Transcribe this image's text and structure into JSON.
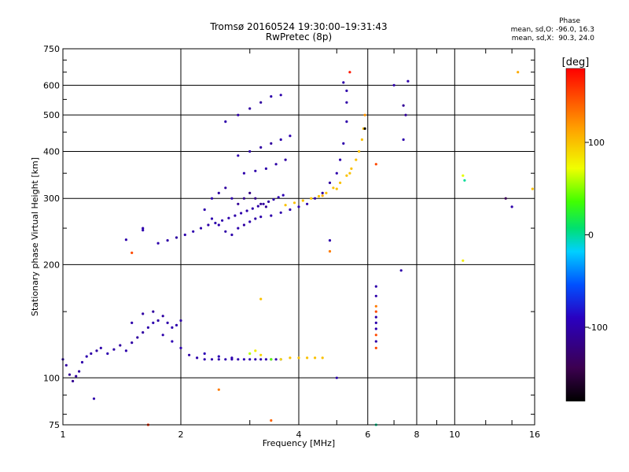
{
  "chart_data": {
    "type": "scatter",
    "title": "Tromsø 20160524 19:30:00–19:31:43",
    "subtitle": "RwPretec (8p)",
    "xlabel": "Frequency [MHz]",
    "ylabel": "Stationary phase Virtual Height [km]",
    "x_scale": "log",
    "y_scale": "log",
    "xlim": [
      1,
      16
    ],
    "ylim": [
      75,
      750
    ],
    "x_ticks": [
      "1",
      "2",
      "4",
      "6",
      "8",
      "10",
      "16"
    ],
    "x_tick_values": [
      1,
      2,
      4,
      6,
      8,
      10,
      16
    ],
    "y_ticks": [
      "75",
      "100",
      "200",
      "300",
      "400",
      "500",
      "600",
      "750"
    ],
    "y_tick_values": [
      75,
      100,
      200,
      300,
      400,
      500,
      600,
      750
    ],
    "grid": true,
    "colorbar": {
      "label": "[deg]",
      "range": [
        -180,
        180
      ],
      "ticks": [
        "100",
        "0",
        "-100"
      ],
      "tick_values": [
        100,
        0,
        -100
      ]
    },
    "stats": {
      "header": "Phase",
      "o_mode": "mean, sd,O: -96.0, 16.3",
      "x_mode": "mean, sd,X:  90.3, 24.0"
    },
    "series": [
      {
        "points": [
          [
            1.0,
            112,
            -100
          ],
          [
            1.02,
            108,
            -105
          ],
          [
            1.04,
            102,
            -110
          ],
          [
            1.06,
            98,
            -112
          ],
          [
            1.08,
            101,
            -108
          ],
          [
            1.1,
            104,
            -106
          ],
          [
            1.12,
            110,
            -100
          ],
          [
            1.15,
            114,
            -98
          ],
          [
            1.18,
            116,
            -102
          ],
          [
            1.22,
            118,
            -104
          ],
          [
            1.25,
            120,
            -100
          ],
          [
            1.3,
            116,
            -98
          ],
          [
            1.35,
            119,
            -102
          ],
          [
            1.4,
            122,
            -105
          ],
          [
            1.45,
            118,
            -100
          ],
          [
            1.5,
            124,
            -103
          ],
          [
            1.55,
            128,
            -106
          ],
          [
            1.6,
            132,
            -104
          ],
          [
            1.65,
            136,
            -100
          ],
          [
            1.7,
            140,
            -98
          ],
          [
            1.75,
            142,
            -102
          ],
          [
            1.8,
            146,
            -104
          ],
          [
            1.85,
            140,
            -100
          ],
          [
            1.9,
            136,
            -97
          ],
          [
            1.95,
            138,
            -99
          ],
          [
            2.0,
            142,
            -102
          ],
          [
            1.5,
            140,
            -100
          ],
          [
            1.6,
            148,
            -104
          ],
          [
            1.7,
            150,
            -106
          ],
          [
            1.8,
            130,
            -100
          ],
          [
            1.9,
            125,
            -96
          ],
          [
            2.0,
            120,
            -98
          ],
          [
            2.1,
            115,
            -102
          ],
          [
            2.2,
            113,
            -100
          ],
          [
            2.3,
            112,
            -100
          ],
          [
            2.4,
            112,
            -100
          ],
          [
            2.5,
            112,
            -100
          ],
          [
            2.6,
            112,
            -98
          ],
          [
            2.7,
            112,
            -100
          ],
          [
            2.8,
            112,
            -100
          ],
          [
            2.9,
            112,
            -96
          ],
          [
            3.0,
            112,
            -100
          ],
          [
            3.1,
            112,
            -100
          ],
          [
            3.2,
            112,
            -100
          ],
          [
            3.3,
            112,
            -100
          ],
          [
            3.4,
            112,
            -100
          ],
          [
            3.5,
            112,
            -98
          ],
          [
            3.6,
            112,
            -100
          ],
          [
            2.3,
            116,
            -95
          ],
          [
            2.5,
            114,
            -96
          ],
          [
            2.7,
            113,
            -98
          ],
          [
            3.0,
            116,
            60
          ],
          [
            3.1,
            118,
            80
          ],
          [
            3.2,
            115,
            90
          ],
          [
            3.4,
            112,
            40
          ],
          [
            3.6,
            112,
            90
          ],
          [
            3.8,
            113,
            100
          ],
          [
            4.0,
            113,
            100
          ],
          [
            4.2,
            113,
            100
          ],
          [
            4.4,
            113,
            100
          ],
          [
            4.6,
            113,
            100
          ]
        ]
      },
      {
        "points": [
          [
            1.75,
            228,
            -100
          ],
          [
            1.85,
            232,
            -102
          ],
          [
            1.95,
            236,
            -104
          ],
          [
            2.05,
            240,
            -100
          ],
          [
            2.15,
            245,
            -98
          ],
          [
            2.25,
            250,
            -100
          ],
          [
            2.35,
            255,
            -102
          ],
          [
            2.45,
            258,
            -100
          ],
          [
            2.55,
            262,
            -99
          ],
          [
            2.65,
            266,
            -100
          ],
          [
            2.75,
            270,
            -101
          ],
          [
            2.85,
            274,
            -100
          ],
          [
            2.95,
            278,
            -100
          ],
          [
            3.05,
            282,
            -100
          ],
          [
            3.15,
            286,
            -102
          ],
          [
            3.25,
            290,
            -104
          ],
          [
            3.35,
            294,
            -106
          ],
          [
            3.45,
            298,
            -100
          ],
          [
            3.55,
            302,
            -98
          ],
          [
            3.65,
            306,
            -96
          ],
          [
            2.4,
            300,
            -100
          ],
          [
            2.5,
            310,
            -104
          ],
          [
            2.6,
            320,
            -106
          ],
          [
            2.7,
            300,
            -100
          ],
          [
            2.8,
            290,
            -110
          ],
          [
            2.9,
            300,
            -115
          ],
          [
            3.0,
            310,
            -120
          ],
          [
            3.1,
            300,
            -118
          ],
          [
            3.2,
            290,
            -112
          ],
          [
            3.3,
            285,
            -110
          ],
          [
            2.3,
            280,
            -100
          ],
          [
            2.4,
            265,
            -98
          ],
          [
            2.5,
            255,
            -100
          ],
          [
            2.6,
            245,
            -102
          ],
          [
            2.7,
            240,
            -100
          ],
          [
            2.8,
            250,
            -100
          ],
          [
            2.9,
            255,
            -104
          ],
          [
            3.0,
            260,
            -100
          ],
          [
            3.1,
            265,
            -102
          ],
          [
            3.2,
            268,
            -100
          ],
          [
            3.4,
            270,
            -100
          ],
          [
            3.6,
            275,
            -100
          ],
          [
            3.8,
            280,
            -98
          ],
          [
            4.0,
            285,
            -96
          ],
          [
            4.2,
            290,
            -100
          ],
          [
            4.4,
            300,
            -100
          ],
          [
            4.6,
            310,
            -104
          ],
          [
            4.8,
            330,
            -106
          ],
          [
            5.0,
            350,
            -100
          ],
          [
            5.1,
            380,
            -100
          ],
          [
            5.2,
            420,
            -100
          ],
          [
            5.3,
            480,
            -100
          ],
          [
            5.3,
            540,
            -102
          ],
          [
            5.3,
            580,
            -100
          ],
          [
            5.2,
            610,
            -100
          ],
          [
            2.6,
            480,
            -100
          ],
          [
            2.8,
            500,
            -102
          ],
          [
            3.0,
            520,
            -104
          ],
          [
            3.2,
            540,
            -106
          ],
          [
            3.4,
            560,
            -100
          ],
          [
            3.6,
            565,
            -100
          ],
          [
            2.8,
            390,
            -100
          ],
          [
            3.0,
            400,
            -102
          ],
          [
            3.2,
            410,
            -104
          ],
          [
            3.4,
            420,
            -106
          ],
          [
            3.6,
            430,
            -100
          ],
          [
            3.8,
            440,
            -98
          ],
          [
            2.9,
            350,
            -100
          ],
          [
            3.1,
            355,
            -100
          ],
          [
            3.3,
            360,
            -100
          ],
          [
            3.5,
            370,
            -102
          ],
          [
            3.7,
            380,
            -104
          ]
        ]
      },
      {
        "points": [
          [
            3.7,
            288,
            100
          ],
          [
            3.9,
            292,
            100
          ],
          [
            4.1,
            296,
            100
          ],
          [
            4.3,
            300,
            100
          ],
          [
            4.5,
            304,
            100
          ],
          [
            4.7,
            310,
            100
          ],
          [
            4.9,
            320,
            100
          ],
          [
            5.1,
            330,
            100
          ],
          [
            5.3,
            345,
            100
          ],
          [
            5.45,
            360,
            100
          ],
          [
            5.6,
            380,
            100
          ],
          [
            5.7,
            400,
            100
          ],
          [
            5.8,
            430,
            100
          ],
          [
            5.85,
            460,
            100
          ],
          [
            5.9,
            500,
            120
          ],
          [
            4.6,
            305,
            110
          ],
          [
            5.0,
            318,
            100
          ],
          [
            5.4,
            350,
            100
          ]
        ]
      },
      {
        "points": [
          [
            1.2,
            88,
            -100
          ],
          [
            1.45,
            233,
            -100
          ],
          [
            1.5,
            215,
            150
          ],
          [
            1.6,
            250,
            -100
          ],
          [
            1.6,
            247,
            -98
          ],
          [
            1.65,
            75,
            160
          ],
          [
            3.2,
            162,
            100
          ],
          [
            3.4,
            77,
            140
          ],
          [
            4.8,
            217,
            130
          ],
          [
            4.8,
            232,
            -100
          ],
          [
            5.0,
            100,
            -100
          ],
          [
            2.5,
            93,
            130
          ],
          [
            6.3,
            370,
            150
          ],
          [
            6.3,
            175,
            -100
          ],
          [
            6.3,
            165,
            -100
          ],
          [
            6.3,
            155,
            130
          ],
          [
            6.3,
            150,
            150
          ],
          [
            6.3,
            145,
            -100
          ],
          [
            6.3,
            140,
            -100
          ],
          [
            6.3,
            135,
            -100
          ],
          [
            6.3,
            130,
            150
          ],
          [
            6.3,
            125,
            -100
          ],
          [
            6.3,
            120,
            150
          ],
          [
            6.3,
            75,
            0
          ],
          [
            7.0,
            600,
            -100
          ],
          [
            7.3,
            193,
            -100
          ],
          [
            7.4,
            530,
            -110
          ],
          [
            7.4,
            430,
            -100
          ],
          [
            7.5,
            500,
            -110
          ],
          [
            7.6,
            615,
            -100
          ],
          [
            10.5,
            345,
            70
          ],
          [
            10.6,
            335,
            0
          ],
          [
            10.5,
            205,
            80
          ],
          [
            13.5,
            300,
            -140
          ],
          [
            14.0,
            285,
            -100
          ],
          [
            14.5,
            650,
            110
          ],
          [
            15.8,
            318,
            100
          ],
          [
            5.4,
            650,
            170
          ],
          [
            5.9,
            460,
            -180
          ]
        ]
      }
    ]
  }
}
